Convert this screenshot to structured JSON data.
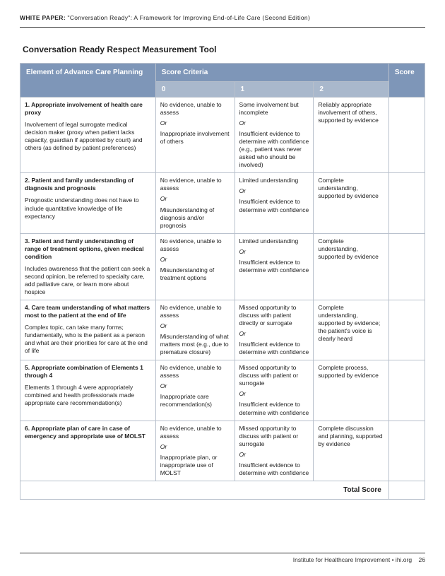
{
  "header": {
    "prefix": "WHITE PAPER:",
    "title": "\"Conversation Ready\": A Framework for Improving End-of-Life Care (Second Edition)"
  },
  "section_title": "Conversation Ready Respect Measurement Tool",
  "columns": {
    "element": "Element of Advance Care Planning",
    "criteria": "Score Criteria",
    "c0": "0",
    "c1": "1",
    "c2": "2",
    "score": "Score"
  },
  "rows": [
    {
      "title": "1. Appropriate involvement of health care proxy",
      "desc": "Involvement of legal surrogate medical decision maker (proxy when patient lacks capacity, guardian if appointed by court) and others (as defined by patient preferences)",
      "s0a": "No evidence, unable to assess",
      "s0b": "Inappropriate involvement of others",
      "s1a": "Some involvement but incomplete",
      "s1b": "Insufficient evidence to determine with confidence (e.g., patient was never asked who should be involved)",
      "s2": "Reliably appropriate involvement of others, supported by evidence"
    },
    {
      "title": "2. Patient and family understanding of diagnosis and prognosis",
      "desc": "Prognostic understanding does not have to include quantitative knowledge of life expectancy",
      "s0a": "No evidence, unable to assess",
      "s0b": "Misunderstanding of diagnosis and/or prognosis",
      "s1a": "Limited understanding",
      "s1b": "Insufficient evidence to determine with confidence",
      "s2": "Complete understanding, supported by evidence"
    },
    {
      "title": "3. Patient and family understanding of range of treatment options, given medical condition",
      "desc": "Includes awareness that the patient can seek a second opinion, be referred to specialty care, add palliative care, or learn more about hospice",
      "s0a": "No evidence, unable to assess",
      "s0b": "Misunderstanding of treatment options",
      "s1a": "Limited understanding",
      "s1b": "Insufficient evidence to determine with confidence",
      "s2": "Complete understanding, supported by evidence"
    },
    {
      "title": "4. Care team understanding of what matters most to the patient at the end of life",
      "desc": "Complex topic, can take many forms; fundamentally, who is the patient as a person and what are their priorities for care at the end of life",
      "s0a": "No evidence, unable to assess",
      "s0b": "Misunderstanding of what matters most (e.g., due to premature closure)",
      "s1a": "Missed opportunity to discuss with patient directly or surrogate",
      "s1b": "Insufficient evidence to determine with confidence",
      "s2": "Complete understanding, supported by evidence; the patient's voice is clearly heard"
    },
    {
      "title": "5. Appropriate combination of Elements 1 through 4",
      "desc": "Elements 1 through 4 were appropriately combined and health professionals made appropriate care recommendation(s)",
      "s0a": "No evidence, unable to assess",
      "s0b": "Inappropriate care recommendation(s)",
      "s1a": "Missed opportunity to discuss with patient or surrogate",
      "s1b": "Insufficient evidence to determine with confidence",
      "s2": "Complete process, supported by evidence"
    },
    {
      "title": "6. Appropriate plan of care in case of emergency and appropriate use of MOLST",
      "desc": "",
      "s0a": "No evidence, unable to assess",
      "s0b": "Inappropriate plan, or inappropriate use of MOLST",
      "s1a": "Missed opportunity to discuss with patient or surrogate",
      "s1b": "Insufficient evidence to determine with confidence",
      "s2": "Complete discussion and planning, supported by evidence"
    }
  ],
  "or_label": "Or",
  "total_label": "Total Score",
  "footer": {
    "org": "Institute for Healthcare Improvement • ihi.org",
    "page": "26"
  }
}
